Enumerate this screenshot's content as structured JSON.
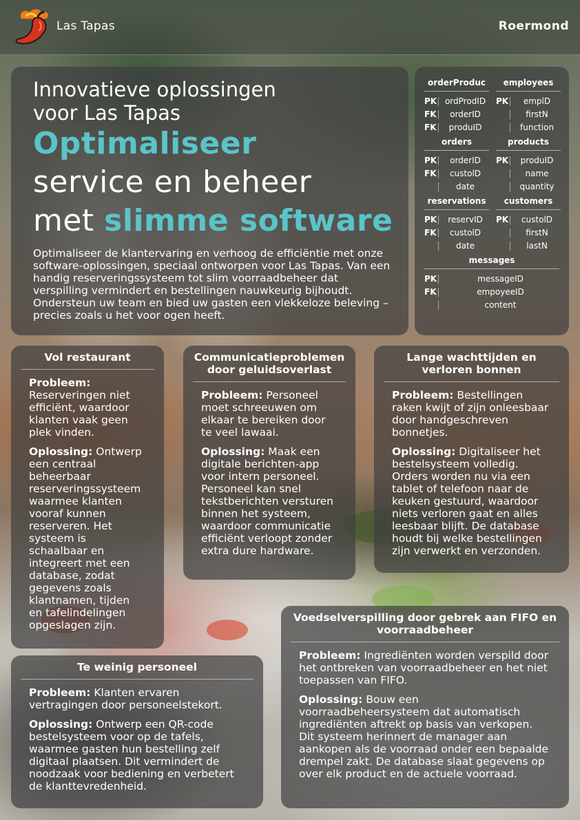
{
  "header": {
    "brand": "Las Tapas",
    "city": "Roermond"
  },
  "colors": {
    "accent": "#5bc4c9",
    "panel": "rgba(62,62,62,0.70)",
    "logo_red": "#d8321c",
    "logo_orange": "#f07a1c"
  },
  "hero": {
    "subtitle_line1": "Innovatieve oplossingen",
    "subtitle_line2": "voor Las Tapas",
    "headline_accent1": "Optimaliseer",
    "headline_line2": "service en beheer",
    "headline_line3_prefix": "met ",
    "headline_accent2": "slimme software",
    "body": "Optimaliseer de klantervaring en verhoog de efficiëntie met onze software-oplossingen, speciaal ontworpen voor Las Tapas. Van een handig reserveringssysteem tot slim voorraadbeheer dat verspilling vermindert en bestellingen nauwkeurig bijhoudt. Ondersteun uw team en bied uw gasten een vlekkeloze beleving – precies zoals u het voor ogen heeft."
  },
  "schema": {
    "rows": [
      {
        "left": {
          "name": "orderProduc",
          "fields": [
            {
              "key": "PK",
              "name": "ordProdID"
            },
            {
              "key": "FK",
              "name": "orderID"
            },
            {
              "key": "FK",
              "name": "produID"
            }
          ]
        },
        "right": {
          "name": "employees",
          "fields": [
            {
              "key": "PK",
              "name": "emplD"
            },
            {
              "key": "",
              "name": "firstN"
            },
            {
              "key": "",
              "name": "function"
            }
          ]
        }
      },
      {
        "left": {
          "name": "orders",
          "fields": [
            {
              "key": "PK",
              "name": "orderID"
            },
            {
              "key": "FK",
              "name": "custolD"
            },
            {
              "key": "",
              "name": "date"
            }
          ]
        },
        "right": {
          "name": "products",
          "fields": [
            {
              "key": "PK",
              "name": "produID"
            },
            {
              "key": "",
              "name": "name"
            },
            {
              "key": "",
              "name": "quantity"
            }
          ]
        }
      },
      {
        "left": {
          "name": "reservations",
          "fields": [
            {
              "key": "PK",
              "name": "reservID"
            },
            {
              "key": "FK",
              "name": "custolD"
            },
            {
              "key": "",
              "name": "date"
            }
          ]
        },
        "right": {
          "name": "customers",
          "fields": [
            {
              "key": "PK",
              "name": "custolD"
            },
            {
              "key": "",
              "name": "firstN"
            },
            {
              "key": "",
              "name": "lastN"
            }
          ]
        }
      }
    ],
    "messages": {
      "name": "messages",
      "fields": [
        {
          "key": "PK",
          "name": "messageID"
        },
        {
          "key": "FK",
          "name": "empoyeeID"
        },
        {
          "key": "",
          "name": "content"
        }
      ]
    }
  },
  "cards": {
    "c1": {
      "title": "Vol restaurant",
      "problem_label": "Probleem:",
      "problem": "Reserveringen niet efficiënt, waardoor klanten vaak geen plek vinden.",
      "solution_label": "Oplossing:",
      "solution": "Ontwerp een centraal beheerbaar reserveringssysteem waarmee klanten vooraf kunnen reserveren. Het systeem is schaalbaar en integreert met een database, zodat gegevens zoals klantnamen, tijden en tafelindelingen opgeslagen zijn."
    },
    "c2": {
      "title": "Communicatieproblemen door geluidsoverlast",
      "problem_label": "Probleem:",
      "problem": "Personeel moet schreeuwen om elkaar te bereiken door te veel lawaai.",
      "solution_label": "Oplossing:",
      "solution": "Maak een digitale berichten-app voor intern personeel. Personeel kan snel tekstberichten versturen binnen het systeem, waardoor communicatie efficiënt verloopt zonder extra dure hardware."
    },
    "c3": {
      "title": "Lange wachttijden en verloren bonnen",
      "problem_label": "Probleem:",
      "problem": "Bestellingen raken kwijt of zijn onleesbaar door handgeschreven bonnetjes.",
      "solution_label": "Oplossing:",
      "solution": "Digitaliseer het bestelsysteem volledig. Orders worden nu via een tablet of telefoon naar de keuken gestuurd, waardoor niets verloren gaat en alles leesbaar blijft. De database houdt bij welke bestellingen zijn verwerkt en verzonden."
    },
    "c4": {
      "title": "Te weinig personeel",
      "problem_label": "Probleem:",
      "problem": "Klanten ervaren vertragingen door personeelstekort.",
      "solution_label": "Oplossing:",
      "solution": "Ontwerp een QR-code bestelsysteem voor op de tafels, waarmee gasten hun bestelling zelf digitaal plaatsen. Dit vermindert de noodzaak voor bediening en verbetert de klanttevredenheid."
    },
    "c5": {
      "title": "Voedselverspilling door gebrek aan FIFO en voorraadbeheer",
      "problem_label": "Probleem:",
      "problem": "Ingrediënten worden verspild door het ontbreken van voorraadbeheer en het niet toepassen van FIFO.",
      "solution_label": "Oplossing:",
      "solution": "Bouw een voorraadbeheersysteem dat automatisch ingrediënten aftrekt op basis van verkopen. Dit systeem herinnert de manager aan aankopen als de voorraad onder een bepaalde drempel zakt. De database slaat gegevens op over elk product en de actuele voorraad."
    }
  }
}
